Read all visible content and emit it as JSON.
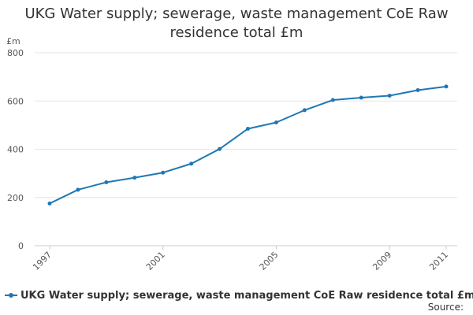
{
  "chart_data": {
    "type": "line",
    "title_lines": [
      "UKG Water supply; sewerage, waste management CoE Raw",
      "residence total £m"
    ],
    "y_unit": "£m",
    "xlabel": "",
    "ylabel": "",
    "x": [
      1997,
      1998,
      1999,
      2000,
      2001,
      2002,
      2003,
      2004,
      2005,
      2006,
      2007,
      2008,
      2009,
      2010,
      2011
    ],
    "x_tick_labels": [
      "1997",
      "2001",
      "2005",
      "2009",
      "2011"
    ],
    "y_ticks": [
      0,
      200,
      400,
      600,
      800
    ],
    "xlim": [
      1997,
      2011
    ],
    "ylim": [
      0,
      800
    ],
    "grid": "horizontal",
    "legend_position": "bottom-left",
    "series": [
      {
        "name": "UKG Water supply; sewerage, waste management CoE Raw residence total £m",
        "color": "#1f78b4",
        "values": [
          175,
          232,
          263,
          282,
          303,
          340,
          401,
          485,
          511,
          562,
          604,
          614,
          622,
          645,
          660
        ]
      }
    ]
  },
  "footer": {
    "source_label": "Source:"
  }
}
